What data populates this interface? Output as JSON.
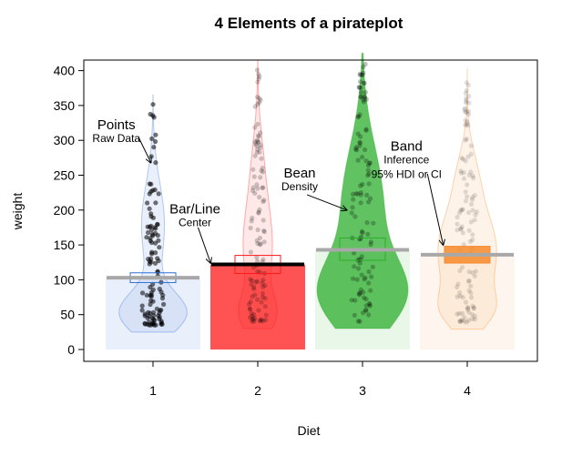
{
  "chart_data": {
    "type": "pirateplot",
    "title": "4 Elements of a pirateplot",
    "xlabel": "Diet",
    "ylabel": "weight",
    "ylim": [
      0,
      410
    ],
    "yticks": [
      0,
      50,
      100,
      150,
      200,
      250,
      300,
      350,
      400
    ],
    "categories": [
      "1",
      "2",
      "3",
      "4"
    ],
    "groups": [
      {
        "diet": "1",
        "mean": 103,
        "ci_low": 96,
        "ci_high": 110,
        "min": 35,
        "max": 355,
        "color": "#2f6fd6",
        "bar_opacity": 0.1,
        "bean_opacity": 0.1,
        "hdi_opacity": 0.0,
        "line_color": "#a8a8a8",
        "point_opacity": 0.55
      },
      {
        "diet": "2",
        "mean": 122,
        "ci_low": 109,
        "ci_high": 135,
        "min": 40,
        "max": 405,
        "color": "#ff1a1a",
        "bar_opacity": 0.75,
        "bean_opacity": 0.1,
        "hdi_opacity": 0.0,
        "line_color": "#000000",
        "point_opacity": 0.2
      },
      {
        "diet": "3",
        "mean": 143,
        "ci_low": 128,
        "ci_high": 160,
        "min": 40,
        "max": 415,
        "color": "#2cad2c",
        "bar_opacity": 0.1,
        "bean_opacity": 0.75,
        "hdi_opacity": 0.0,
        "line_color": "#a8a8a8",
        "point_opacity": 0.25
      },
      {
        "diet": "4",
        "mean": 136,
        "ci_low": 124,
        "ci_high": 148,
        "min": 39,
        "max": 393,
        "color": "#f5892c",
        "bar_opacity": 0.08,
        "bean_opacity": 0.1,
        "hdi_opacity": 0.85,
        "line_color": "#a8a8a8",
        "point_opacity": 0.12
      }
    ],
    "annotations": [
      {
        "title": "Points",
        "subtitle": "Raw Data",
        "text_x": 0.65,
        "text_y": 316,
        "arrow_from": [
          0.86,
          305
        ],
        "arrow_to": [
          0.98,
          268
        ]
      },
      {
        "title": "Bar/Line",
        "subtitle": "Center",
        "text_x": 1.4,
        "text_y": 195,
        "arrow_from": [
          1.43,
          175
        ],
        "arrow_to": [
          1.55,
          124
        ]
      },
      {
        "title": "Bean",
        "subtitle": "Density",
        "text_x": 2.4,
        "text_y": 247,
        "arrow_from": [
          2.47,
          222
        ],
        "arrow_to": [
          2.85,
          200
        ]
      },
      {
        "title": "Band",
        "subtitle": "Inference",
        "subtitle2": "95% HDI or CI",
        "text_x": 3.42,
        "text_y": 285,
        "arrow_from": [
          3.62,
          252
        ],
        "arrow_to": [
          3.77,
          150
        ]
      }
    ]
  }
}
